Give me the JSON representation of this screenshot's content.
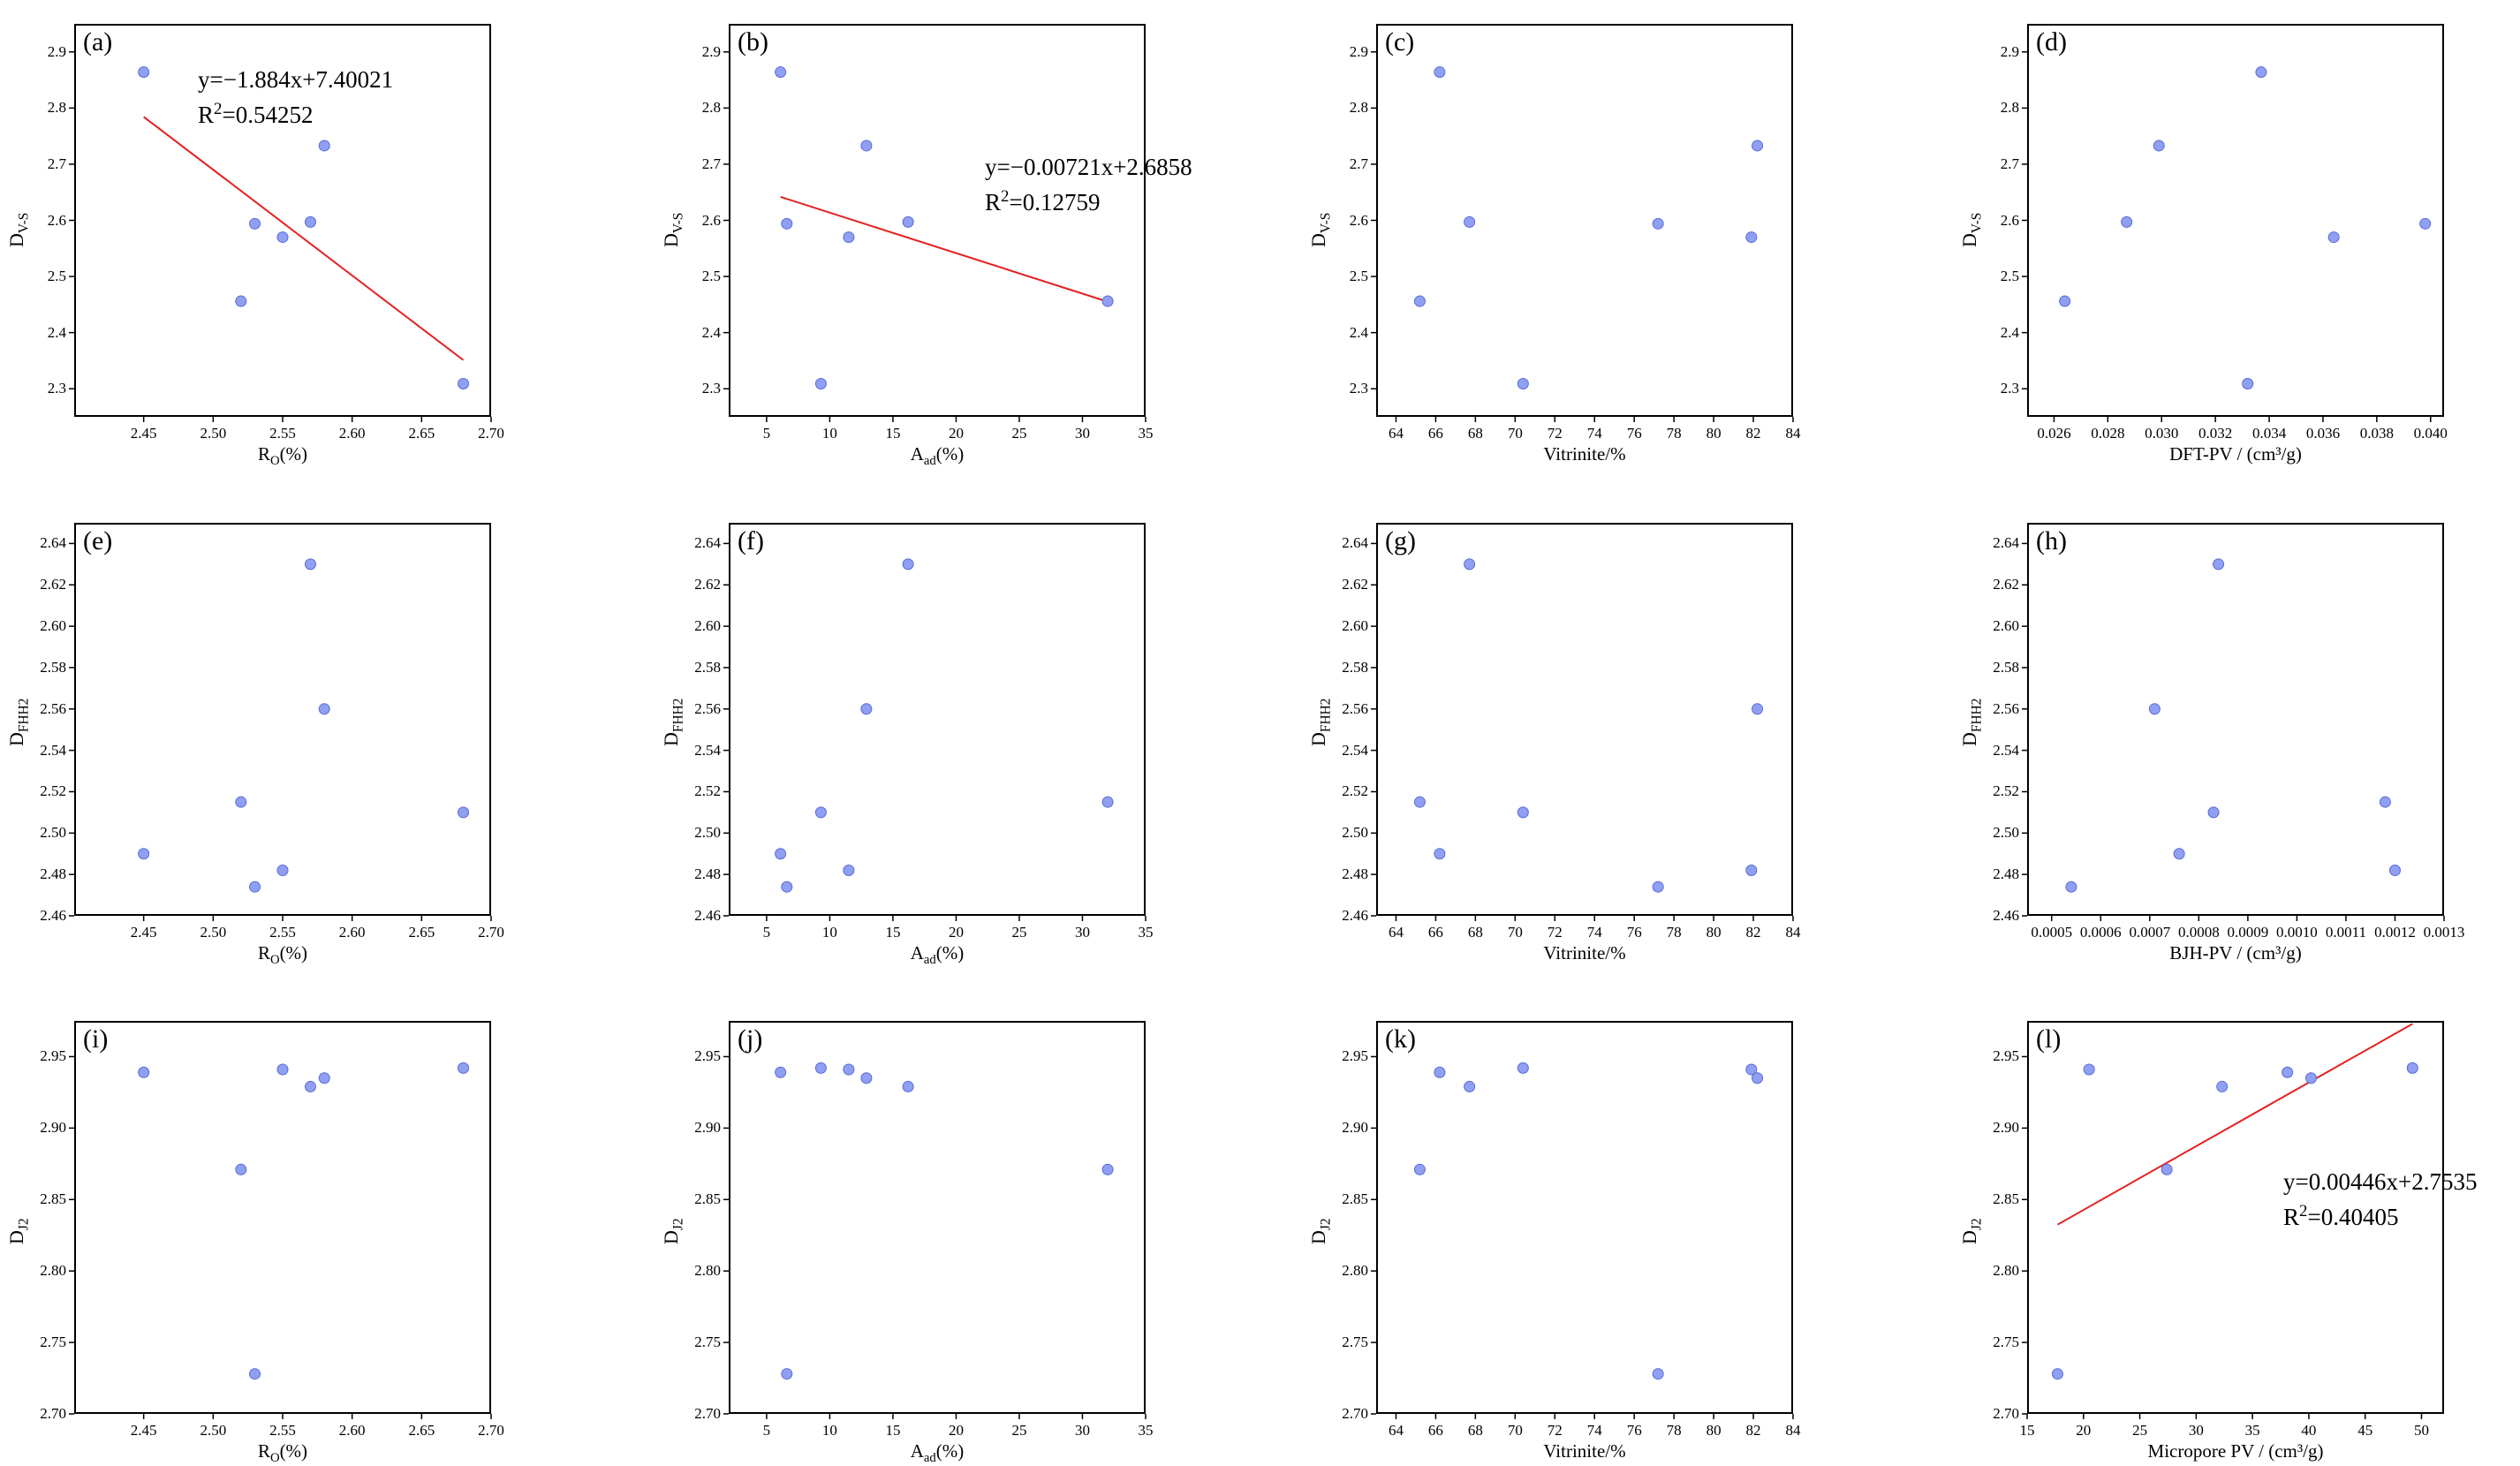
{
  "colors": {
    "marker": "#8f9ff2",
    "marker_edge": "#5a6ad8",
    "fit_line": "#e62020",
    "axis": "#000000"
  },
  "chart_data": [
    {
      "id": "a",
      "label": "(a)",
      "type": "scatter",
      "xlabel_main": "R",
      "xlabel_sub": "O",
      "xlabel_tail": "(%)",
      "ylabel_main": "D",
      "ylabel_sub": "V-S",
      "xlim": [
        2.4,
        2.7
      ],
      "ylim": [
        2.25,
        2.95
      ],
      "xticks": [
        2.45,
        2.5,
        2.55,
        2.6,
        2.65,
        2.7
      ],
      "xtick_labels": [
        "2.45",
        "2.50",
        "2.55",
        "2.60",
        "2.65",
        "2.70"
      ],
      "yticks": [
        2.3,
        2.4,
        2.5,
        2.6,
        2.7,
        2.8,
        2.9
      ],
      "ytick_labels": [
        "2.3",
        "2.4",
        "2.5",
        "2.6",
        "2.7",
        "2.8",
        "2.9"
      ],
      "x": [
        2.45,
        2.52,
        2.53,
        2.55,
        2.57,
        2.58,
        2.68
      ],
      "y": [
        2.864,
        2.456,
        2.594,
        2.57,
        2.597,
        2.733,
        2.309
      ],
      "fit": {
        "slope": -1.884,
        "intercept": 7.40021,
        "x_range": [
          2.45,
          2.68
        ],
        "equation": "y=−1.884x+7.40021",
        "r2_label": "R",
        "r2_value": "=0.54252"
      }
    },
    {
      "id": "b",
      "label": "(b)",
      "type": "scatter",
      "xlabel_main": "A",
      "xlabel_sub": "ad",
      "xlabel_tail": "(%)",
      "ylabel_main": "D",
      "ylabel_sub": "V-S",
      "xlim": [
        2,
        35
      ],
      "ylim": [
        2.25,
        2.95
      ],
      "xticks": [
        5,
        10,
        15,
        20,
        25,
        30,
        35
      ],
      "xtick_labels": [
        "5",
        "10",
        "15",
        "20",
        "25",
        "30",
        "35"
      ],
      "yticks": [
        2.3,
        2.4,
        2.5,
        2.6,
        2.7,
        2.8,
        2.9
      ],
      "ytick_labels": [
        "2.3",
        "2.4",
        "2.5",
        "2.6",
        "2.7",
        "2.8",
        "2.9"
      ],
      "x": [
        6.1,
        6.6,
        9.3,
        11.5,
        12.9,
        16.2,
        32.0
      ],
      "y": [
        2.864,
        2.594,
        2.309,
        2.57,
        2.733,
        2.597,
        2.456
      ],
      "fit": {
        "slope": -0.00721,
        "intercept": 2.6858,
        "x_range": [
          6.1,
          32.0
        ],
        "equation": "y=−0.00721x+2.6858",
        "r2_label": "R",
        "r2_value": "=0.12759"
      }
    },
    {
      "id": "c",
      "label": "(c)",
      "type": "scatter",
      "xlabel_main": "Vitrinite/%",
      "xlabel_sub": "",
      "xlabel_tail": "",
      "ylabel_main": "D",
      "ylabel_sub": "V-S",
      "xlim": [
        63,
        84
      ],
      "ylim": [
        2.25,
        2.95
      ],
      "xticks": [
        64,
        66,
        68,
        70,
        72,
        74,
        76,
        78,
        80,
        82,
        84
      ],
      "xtick_labels": [
        "64",
        "66",
        "68",
        "70",
        "72",
        "74",
        "76",
        "78",
        "80",
        "82",
        "84"
      ],
      "yticks": [
        2.3,
        2.4,
        2.5,
        2.6,
        2.7,
        2.8,
        2.9
      ],
      "ytick_labels": [
        "2.3",
        "2.4",
        "2.5",
        "2.6",
        "2.7",
        "2.8",
        "2.9"
      ],
      "x": [
        65.2,
        66.2,
        67.7,
        70.4,
        77.2,
        81.9,
        82.2
      ],
      "y": [
        2.456,
        2.864,
        2.597,
        2.309,
        2.594,
        2.57,
        2.733
      ]
    },
    {
      "id": "d",
      "label": "(d)",
      "type": "scatter",
      "xlabel_main": "DFT-PV / (cm³/g)",
      "xlabel_sub": "",
      "xlabel_tail": "",
      "ylabel_main": "D",
      "ylabel_sub": "V-S",
      "xlim": [
        0.025,
        0.0405
      ],
      "ylim": [
        2.25,
        2.95
      ],
      "xticks": [
        0.026,
        0.028,
        0.03,
        0.032,
        0.034,
        0.036,
        0.038,
        0.04
      ],
      "xtick_labels": [
        "0.026",
        "0.028",
        "0.030",
        "0.032",
        "0.034",
        "0.036",
        "0.038",
        "0.040"
      ],
      "yticks": [
        2.3,
        2.4,
        2.5,
        2.6,
        2.7,
        2.8,
        2.9
      ],
      "ytick_labels": [
        "2.3",
        "2.4",
        "2.5",
        "2.6",
        "2.7",
        "2.8",
        "2.9"
      ],
      "x": [
        0.0264,
        0.0287,
        0.0299,
        0.0332,
        0.0337,
        0.0364,
        0.0398
      ],
      "y": [
        2.456,
        2.597,
        2.733,
        2.309,
        2.864,
        2.57,
        2.594
      ]
    },
    {
      "id": "e",
      "label": "(e)",
      "type": "scatter",
      "xlabel_main": "R",
      "xlabel_sub": "O",
      "xlabel_tail": "(%)",
      "ylabel_main": "D",
      "ylabel_sub": "FHH2",
      "xlim": [
        2.4,
        2.7
      ],
      "ylim": [
        2.46,
        2.65
      ],
      "xticks": [
        2.45,
        2.5,
        2.55,
        2.6,
        2.65,
        2.7
      ],
      "xtick_labels": [
        "2.45",
        "2.50",
        "2.55",
        "2.60",
        "2.65",
        "2.70"
      ],
      "yticks": [
        2.46,
        2.48,
        2.5,
        2.52,
        2.54,
        2.56,
        2.58,
        2.6,
        2.62,
        2.64
      ],
      "ytick_labels": [
        "2.46",
        "2.48",
        "2.50",
        "2.52",
        "2.54",
        "2.56",
        "2.58",
        "2.60",
        "2.62",
        "2.64"
      ],
      "x": [
        2.45,
        2.52,
        2.53,
        2.55,
        2.57,
        2.58,
        2.68
      ],
      "y": [
        2.49,
        2.515,
        2.474,
        2.482,
        2.63,
        2.56,
        2.51
      ]
    },
    {
      "id": "f",
      "label": "(f)",
      "type": "scatter",
      "xlabel_main": "A",
      "xlabel_sub": "ad",
      "xlabel_tail": "(%)",
      "ylabel_main": "D",
      "ylabel_sub": "FHH2",
      "xlim": [
        2,
        35
      ],
      "ylim": [
        2.46,
        2.65
      ],
      "xticks": [
        5,
        10,
        15,
        20,
        25,
        30,
        35
      ],
      "xtick_labels": [
        "5",
        "10",
        "15",
        "20",
        "25",
        "30",
        "35"
      ],
      "yticks": [
        2.46,
        2.48,
        2.5,
        2.52,
        2.54,
        2.56,
        2.58,
        2.6,
        2.62,
        2.64
      ],
      "ytick_labels": [
        "2.46",
        "2.48",
        "2.50",
        "2.52",
        "2.54",
        "2.56",
        "2.58",
        "2.60",
        "2.62",
        "2.64"
      ],
      "x": [
        6.1,
        6.6,
        9.3,
        11.5,
        12.9,
        16.2,
        32.0
      ],
      "y": [
        2.49,
        2.474,
        2.51,
        2.482,
        2.56,
        2.63,
        2.515
      ]
    },
    {
      "id": "g",
      "label": "(g)",
      "type": "scatter",
      "xlabel_main": "Vitrinite/%",
      "xlabel_sub": "",
      "xlabel_tail": "",
      "ylabel_main": "D",
      "ylabel_sub": "FHH2",
      "xlim": [
        63,
        84
      ],
      "ylim": [
        2.46,
        2.65
      ],
      "xticks": [
        64,
        66,
        68,
        70,
        72,
        74,
        76,
        78,
        80,
        82,
        84
      ],
      "xtick_labels": [
        "64",
        "66",
        "68",
        "70",
        "72",
        "74",
        "76",
        "78",
        "80",
        "82",
        "84"
      ],
      "yticks": [
        2.46,
        2.48,
        2.5,
        2.52,
        2.54,
        2.56,
        2.58,
        2.6,
        2.62,
        2.64
      ],
      "ytick_labels": [
        "2.46",
        "2.48",
        "2.50",
        "2.52",
        "2.54",
        "2.56",
        "2.58",
        "2.60",
        "2.62",
        "2.64"
      ],
      "x": [
        65.2,
        66.2,
        67.7,
        70.4,
        77.2,
        81.9,
        82.2
      ],
      "y": [
        2.515,
        2.49,
        2.63,
        2.51,
        2.474,
        2.482,
        2.56
      ]
    },
    {
      "id": "h",
      "label": "(h)",
      "type": "scatter",
      "xlabel_main": "BJH-PV / (cm³/g)",
      "xlabel_sub": "",
      "xlabel_tail": "",
      "ylabel_main": "D",
      "ylabel_sub": "FHH2",
      "xlim": [
        0.00045,
        0.0013
      ],
      "ylim": [
        2.46,
        2.65
      ],
      "xticks": [
        0.0005,
        0.0006,
        0.0007,
        0.0008,
        0.0009,
        0.001,
        0.0011,
        0.0012,
        0.0013
      ],
      "xtick_labels": [
        "0.0005",
        "0.0006",
        "0.0007",
        "0.0008",
        "0.0009",
        "0.0010",
        "0.0011",
        "0.0012",
        "0.0013"
      ],
      "yticks": [
        2.46,
        2.48,
        2.5,
        2.52,
        2.54,
        2.56,
        2.58,
        2.6,
        2.62,
        2.64
      ],
      "ytick_labels": [
        "2.46",
        "2.48",
        "2.50",
        "2.52",
        "2.54",
        "2.56",
        "2.58",
        "2.60",
        "2.62",
        "2.64"
      ],
      "x": [
        0.00054,
        0.00071,
        0.00076,
        0.00083,
        0.00084,
        0.00118,
        0.0012
      ],
      "y": [
        2.474,
        2.56,
        2.49,
        2.51,
        2.63,
        2.515,
        2.482
      ]
    },
    {
      "id": "i",
      "label": "(i)",
      "type": "scatter",
      "xlabel_main": "R",
      "xlabel_sub": "O",
      "xlabel_tail": "(%)",
      "ylabel_main": "D",
      "ylabel_sub": "J2",
      "xlim": [
        2.4,
        2.7
      ],
      "ylim": [
        2.7,
        2.975
      ],
      "xticks": [
        2.45,
        2.5,
        2.55,
        2.6,
        2.65,
        2.7
      ],
      "xtick_labels": [
        "2.45",
        "2.50",
        "2.55",
        "2.60",
        "2.65",
        "2.70"
      ],
      "yticks": [
        2.7,
        2.75,
        2.8,
        2.85,
        2.9,
        2.95
      ],
      "ytick_labels": [
        "2.70",
        "2.75",
        "2.80",
        "2.85",
        "2.90",
        "2.95"
      ],
      "x": [
        2.45,
        2.52,
        2.53,
        2.55,
        2.57,
        2.58,
        2.68
      ],
      "y": [
        2.939,
        2.871,
        2.728,
        2.941,
        2.929,
        2.935,
        2.942
      ]
    },
    {
      "id": "j",
      "label": "(j)",
      "type": "scatter",
      "xlabel_main": "A",
      "xlabel_sub": "ad",
      "xlabel_tail": "(%)",
      "ylabel_main": "D",
      "ylabel_sub": "J2",
      "xlim": [
        2,
        35
      ],
      "ylim": [
        2.7,
        2.975
      ],
      "xticks": [
        5,
        10,
        15,
        20,
        25,
        30,
        35
      ],
      "xtick_labels": [
        "5",
        "10",
        "15",
        "20",
        "25",
        "30",
        "35"
      ],
      "yticks": [
        2.7,
        2.75,
        2.8,
        2.85,
        2.9,
        2.95
      ],
      "ytick_labels": [
        "2.70",
        "2.75",
        "2.80",
        "2.85",
        "2.90",
        "2.95"
      ],
      "x": [
        6.1,
        6.6,
        9.3,
        11.5,
        12.9,
        16.2,
        32.0
      ],
      "y": [
        2.939,
        2.728,
        2.942,
        2.941,
        2.935,
        2.929,
        2.871
      ]
    },
    {
      "id": "k",
      "label": "(k)",
      "type": "scatter",
      "xlabel_main": "Vitrinite/%",
      "xlabel_sub": "",
      "xlabel_tail": "",
      "ylabel_main": "D",
      "ylabel_sub": "J2",
      "xlim": [
        63,
        84
      ],
      "ylim": [
        2.7,
        2.975
      ],
      "xticks": [
        64,
        66,
        68,
        70,
        72,
        74,
        76,
        78,
        80,
        82,
        84
      ],
      "xtick_labels": [
        "64",
        "66",
        "68",
        "70",
        "72",
        "74",
        "76",
        "78",
        "80",
        "82",
        "84"
      ],
      "yticks": [
        2.7,
        2.75,
        2.8,
        2.85,
        2.9,
        2.95
      ],
      "ytick_labels": [
        "2.70",
        "2.75",
        "2.80",
        "2.85",
        "2.90",
        "2.95"
      ],
      "x": [
        65.2,
        66.2,
        67.7,
        70.4,
        77.2,
        81.9,
        82.2
      ],
      "y": [
        2.871,
        2.939,
        2.929,
        2.942,
        2.728,
        2.941,
        2.935
      ]
    },
    {
      "id": "l",
      "label": "(l)",
      "type": "scatter",
      "xlabel_main": "Micropore PV / (cm³/g)",
      "xlabel_sub": "",
      "xlabel_tail": "",
      "ylabel_main": "D",
      "ylabel_sub": "J2",
      "xlim": [
        15,
        52
      ],
      "ylim": [
        2.7,
        2.975
      ],
      "xticks": [
        15,
        20,
        25,
        30,
        35,
        40,
        45,
        50
      ],
      "xtick_labels": [
        "15",
        "20",
        "25",
        "30",
        "35",
        "40",
        "45",
        "50"
      ],
      "yticks": [
        2.7,
        2.75,
        2.8,
        2.85,
        2.9,
        2.95
      ],
      "ytick_labels": [
        "2.70",
        "2.75",
        "2.80",
        "2.85",
        "2.90",
        "2.95"
      ],
      "x": [
        17.7,
        20.5,
        27.4,
        32.3,
        38.1,
        40.2,
        49.2
      ],
      "y": [
        2.728,
        2.941,
        2.871,
        2.929,
        2.939,
        2.935,
        2.942
      ],
      "fit": {
        "slope": 0.00446,
        "intercept": 2.7535,
        "x_range": [
          17.7,
          49.2
        ],
        "equation": "y=0.00446x+2.7535",
        "r2_label": "R",
        "r2_value": "=0.40405"
      }
    }
  ]
}
